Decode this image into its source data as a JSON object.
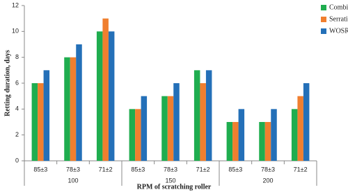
{
  "chart_data": {
    "type": "bar",
    "x_label": "RPM of scratching roller",
    "y_label": "Retting duration, days",
    "categories": [
      "85±3",
      "78±3",
      "71±2",
      "85±3",
      "78±3",
      "71±2",
      "85±3",
      "78±3",
      "71±2"
    ],
    "category_groups": [
      "100",
      "150",
      "200"
    ],
    "series": [
      {
        "name": "Combing",
        "color": "#1fad4f",
        "values": [
          6,
          8,
          10,
          4,
          5,
          7,
          3,
          3,
          4
        ]
      },
      {
        "name": "Serration",
        "color": "#f07f2f",
        "values": [
          6,
          8,
          11,
          4,
          5,
          6,
          3,
          3,
          5
        ]
      },
      {
        "name": "WOSR",
        "color": "#2470b8",
        "values": [
          7,
          9,
          10,
          5,
          6,
          7,
          4,
          4,
          6
        ]
      }
    ],
    "ylim": [
      0,
      12
    ],
    "yticks": [
      0,
      2,
      4,
      6,
      8,
      10,
      12
    ],
    "grid": false,
    "legend": "top-right"
  }
}
